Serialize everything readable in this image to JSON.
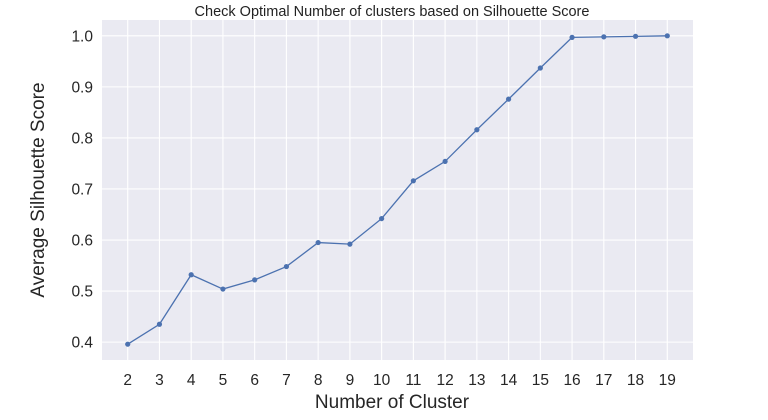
{
  "chart_data": {
    "type": "line",
    "title": "Check Optimal Number of clusters based on Silhouette Score",
    "xlabel": "Number of Cluster",
    "ylabel": "Average Silhouette Score",
    "x": [
      2,
      3,
      4,
      5,
      6,
      7,
      8,
      9,
      10,
      11,
      12,
      13,
      14,
      15,
      16,
      17,
      18,
      19
    ],
    "series": [
      {
        "values": [
          0.396,
          0.435,
          0.532,
          0.504,
          0.522,
          0.548,
          0.595,
          0.592,
          0.642,
          0.716,
          0.754,
          0.816,
          0.876,
          0.937,
          0.997,
          0.998,
          0.999,
          1.0
        ],
        "color": "#4c72b0",
        "marker": "circle"
      }
    ],
    "x_ticks": [
      "2",
      "3",
      "4",
      "5",
      "6",
      "7",
      "8",
      "9",
      "10",
      "11",
      "12",
      "13",
      "14",
      "15",
      "16",
      "17",
      "18",
      "19"
    ],
    "y_ticks": [
      "0.4",
      "0.5",
      "0.6",
      "0.7",
      "0.8",
      "0.9",
      "1.0"
    ],
    "xlim": [
      1.19,
      19.81
    ],
    "ylim": [
      0.365,
      1.031
    ],
    "grid": true,
    "background_color": "#eaeaf2",
    "grid_color": "#ffffff"
  }
}
